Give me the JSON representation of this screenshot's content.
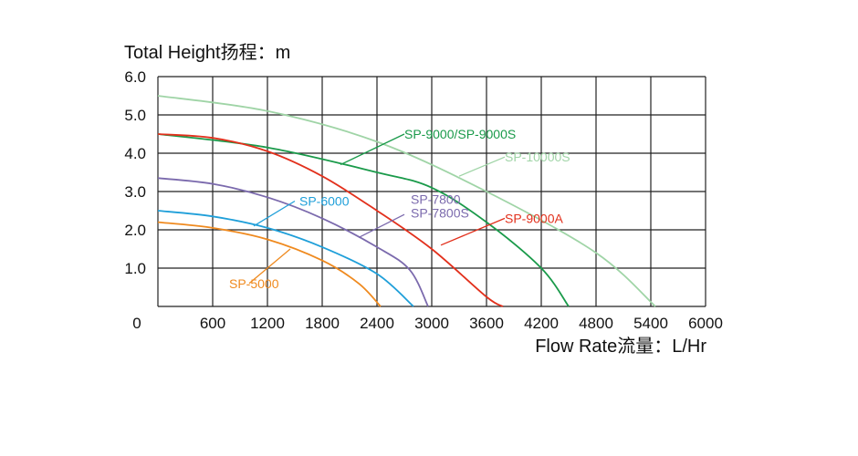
{
  "chart_data": {
    "type": "line",
    "ylabel": "Total Height扬程：m",
    "xlabel": "Flow Rate流量：L/Hr",
    "xlim": [
      0,
      6000
    ],
    "ylim": [
      0,
      6.0
    ],
    "x_ticks": [
      "0",
      "600",
      "1200",
      "1800",
      "2400",
      "3000",
      "3600",
      "4200",
      "4800",
      "5400",
      "6000"
    ],
    "y_ticks": [
      "1.0",
      "2.0",
      "3.0",
      "4.0",
      "5.0",
      "6.0"
    ],
    "grid": true,
    "series": [
      {
        "name": "SP-10000S",
        "color": "#9fd4a6",
        "points": [
          [
            0,
            5.5
          ],
          [
            1200,
            5.1
          ],
          [
            2400,
            4.3
          ],
          [
            3600,
            3.0
          ],
          [
            4800,
            1.4
          ],
          [
            5450,
            0.0
          ]
        ]
      },
      {
        "name": "SP-9000/SP-9000S",
        "color": "#1a9a4a",
        "points": [
          [
            0,
            4.5
          ],
          [
            1200,
            4.15
          ],
          [
            2400,
            3.5
          ],
          [
            3000,
            3.1
          ],
          [
            3600,
            2.2
          ],
          [
            4200,
            1.0
          ],
          [
            4500,
            0.0
          ]
        ]
      },
      {
        "name": "SP-9000A",
        "color": "#e2301c",
        "points": [
          [
            0,
            4.5
          ],
          [
            600,
            4.4
          ],
          [
            1200,
            4.05
          ],
          [
            1800,
            3.4
          ],
          [
            2400,
            2.5
          ],
          [
            3000,
            1.5
          ],
          [
            3600,
            0.25
          ],
          [
            3780,
            0.0
          ]
        ]
      },
      {
        "name": "SP-7800\nSP-7800S",
        "color": "#7b6aad",
        "points": [
          [
            0,
            3.35
          ],
          [
            600,
            3.2
          ],
          [
            1200,
            2.85
          ],
          [
            1800,
            2.3
          ],
          [
            2400,
            1.55
          ],
          [
            2760,
            0.95
          ],
          [
            2960,
            0.0
          ]
        ]
      },
      {
        "name": "SP-6000",
        "color": "#1f9fd9",
        "points": [
          [
            0,
            2.5
          ],
          [
            600,
            2.35
          ],
          [
            1200,
            2.05
          ],
          [
            1800,
            1.55
          ],
          [
            2400,
            0.85
          ],
          [
            2800,
            0.0
          ]
        ]
      },
      {
        "name": "SP-5000",
        "color": "#ef8a1f",
        "points": [
          [
            0,
            2.2
          ],
          [
            600,
            2.05
          ],
          [
            1200,
            1.75
          ],
          [
            1800,
            1.2
          ],
          [
            2200,
            0.6
          ],
          [
            2440,
            0.0
          ]
        ]
      }
    ],
    "annotations": [
      {
        "series": "SP-10000S",
        "text": "SP-10000S",
        "anchor": [
          3300,
          3.4
        ],
        "elbow": [
          3800,
          3.9
        ],
        "text_at": [
          3800,
          3.9
        ],
        "align": "start"
      },
      {
        "series": "SP-9000/SP-9000S",
        "text": "SP-9000/SP-9000S",
        "anchor": [
          2000,
          3.7
        ],
        "elbow": [
          2700,
          4.5
        ],
        "text_at": [
          2700,
          4.5
        ],
        "align": "start"
      },
      {
        "series": "SP-9000A",
        "text": "SP-9000A",
        "anchor": [
          3100,
          1.6
        ],
        "elbow": [
          3800,
          2.3
        ],
        "text_at": [
          3800,
          2.3
        ],
        "align": "start"
      },
      {
        "series": "SP-7800\nSP-7800S",
        "text": "SP-7800\nSP-7800S",
        "anchor": [
          2200,
          1.8
        ],
        "elbow": [
          2700,
          2.4
        ],
        "text_at": [
          2770,
          2.8
        ],
        "align": "start"
      },
      {
        "series": "SP-6000",
        "text": "SP-6000",
        "anchor": [
          1050,
          2.1
        ],
        "elbow": [
          1500,
          2.75
        ],
        "text_at": [
          1550,
          2.75
        ],
        "align": "start"
      },
      {
        "series": "SP-5000",
        "text": "SP-5000",
        "anchor": [
          1450,
          1.5
        ],
        "elbow": [
          1000,
          0.6
        ],
        "text_at": [
          780,
          0.6
        ],
        "align": "start"
      }
    ]
  }
}
